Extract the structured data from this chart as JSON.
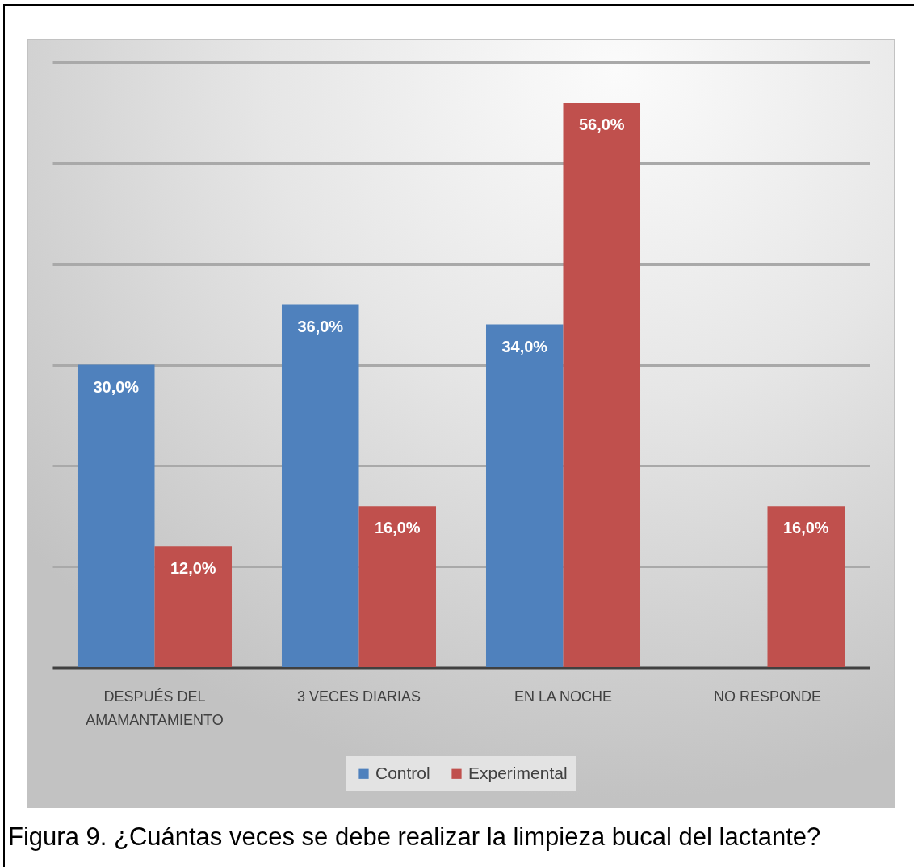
{
  "chart_data": {
    "type": "bar",
    "title": "Figura 9. ¿Cuántas veces se debe realizar la limpieza bucal del lactante?",
    "categories": [
      "DESPUÉS DEL AMAMANTAMIENTO",
      "3 VECES DIARIAS",
      "EN LA NOCHE",
      "NO RESPONDE"
    ],
    "series": [
      {
        "name": "Control",
        "color": "#4f81bd",
        "values": [
          30,
          36,
          34,
          null
        ],
        "value_labels": [
          "30,0%",
          "36,0%",
          "34,0%",
          null
        ]
      },
      {
        "name": "Experimental",
        "color": "#c0504d",
        "values": [
          12,
          16,
          56,
          16
        ],
        "value_labels": [
          "12,0%",
          "16,0%",
          "56,0%",
          "16,0%"
        ]
      }
    ],
    "ylim": [
      0,
      60
    ],
    "yticks": [
      {
        "value": 0,
        "label": null
      },
      {
        "value": 10,
        "label": null
      },
      {
        "value": 20,
        "label": null
      },
      {
        "value": 30,
        "label": null
      },
      {
        "value": 40,
        "label": null
      },
      {
        "value": 50,
        "label": null
      },
      {
        "value": 60,
        "label": null
      }
    ],
    "grid": "y",
    "legend": "bottom",
    "tick_labels": "x"
  }
}
